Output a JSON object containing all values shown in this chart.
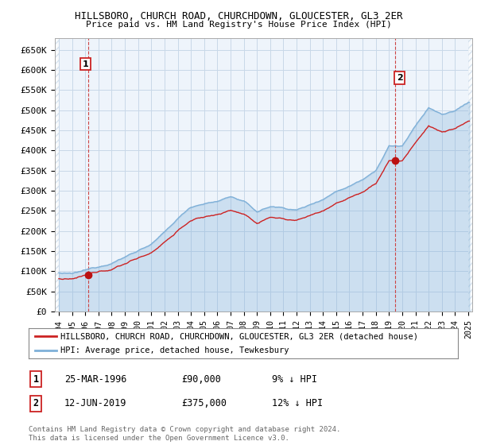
{
  "title": "HILLSBORO, CHURCH ROAD, CHURCHDOWN, GLOUCESTER, GL3 2ER",
  "subtitle": "Price paid vs. HM Land Registry's House Price Index (HPI)",
  "legend_line1": "HILLSBORO, CHURCH ROAD, CHURCHDOWN, GLOUCESTER, GL3 2ER (detached house)",
  "legend_line2": "HPI: Average price, detached house, Tewkesbury",
  "annotation1_label": "1",
  "annotation1_date": "25-MAR-1996",
  "annotation1_price": "£90,000",
  "annotation1_hpi": "9% ↓ HPI",
  "annotation1_year": 1996.23,
  "annotation1_value": 90000,
  "annotation2_label": "2",
  "annotation2_date": "12-JUN-2019",
  "annotation2_price": "£375,000",
  "annotation2_hpi": "12% ↓ HPI",
  "annotation2_year": 2019.45,
  "annotation2_value": 375000,
  "yticks": [
    0,
    50000,
    100000,
    150000,
    200000,
    250000,
    300000,
    350000,
    400000,
    450000,
    500000,
    550000,
    600000,
    650000
  ],
  "ylim": [
    0,
    680000
  ],
  "xlim_min": 1993.7,
  "xlim_max": 2025.3,
  "hpi_color": "#7fb0d8",
  "hpi_fill_color": "#d6e8f5",
  "price_color": "#cc2222",
  "dot_color": "#bb1111",
  "background_color": "#ffffff",
  "chart_bg_color": "#eef4fb",
  "grid_color": "#c8d8e8",
  "hatch_color": "#c8d8e8",
  "dashed_line_color": "#cc4444",
  "box_edge_color": "#cc2222",
  "footnote_color": "#666666",
  "footnote": "Contains HM Land Registry data © Crown copyright and database right 2024.\nThis data is licensed under the Open Government Licence v3.0."
}
